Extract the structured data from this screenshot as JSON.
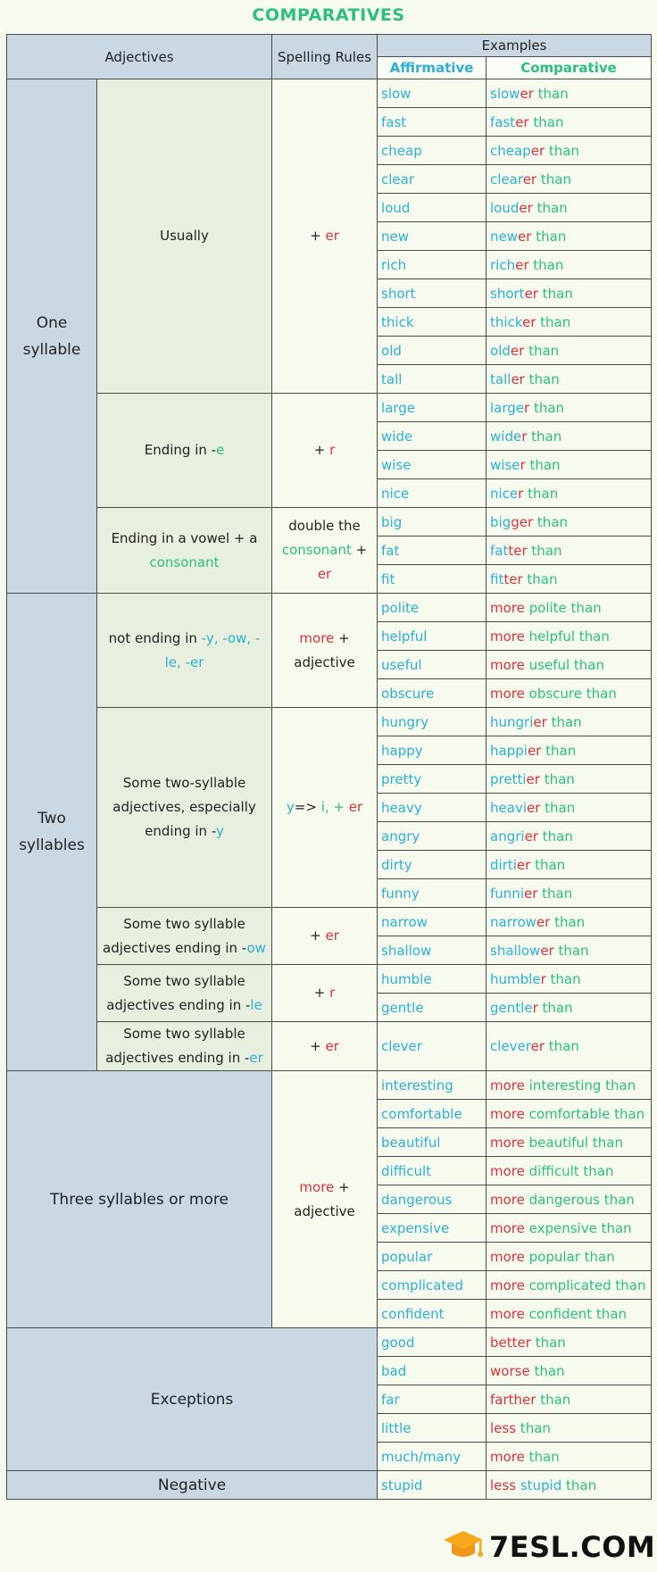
{
  "title": "COMPARATIVES",
  "headers": {
    "adjectives": "Adjectives",
    "spelling_rules": "Spelling Rules",
    "examples": "Examples",
    "affirmative": "Affirmative",
    "comparative": "Comparative"
  },
  "sections": {
    "one_syllable": [
      "One",
      "syllable"
    ],
    "two_syllables": [
      "Two",
      "syllables"
    ],
    "three_syllables": "Three syllables or more",
    "exceptions": "Exceptions",
    "negative": "Negative"
  },
  "categories": {
    "usually": "Usually",
    "ending_e": [
      "Ending in -",
      "e"
    ],
    "ending_vowel": [
      "Ending in a vowel + a",
      "consonant"
    ],
    "not_ending": [
      "not ending in ",
      "-y, -ow, -le, -er"
    ],
    "some_y": [
      "Some two-syllable adjectives, especially ending in -",
      "y"
    ],
    "some_ow": [
      "Some two syllable adjectives ending in -",
      "ow"
    ],
    "some_le": [
      "Some two syllable adjectives ending in -",
      "le"
    ],
    "some_er": [
      "Some two syllable adjectives ending in -",
      "er"
    ]
  },
  "rules": {
    "plus_er": [
      "+ ",
      "er"
    ],
    "plus_r": [
      "+ ",
      "r"
    ],
    "double": [
      "double the",
      "consonant",
      " + ",
      "er"
    ],
    "more_adj": [
      "more",
      " +",
      "adjective"
    ],
    "y_i": [
      "y",
      "=> ",
      "i",
      ", + ",
      "er"
    ]
  },
  "rows": [
    {
      "aff": "slow",
      "c": [
        "slow",
        "er",
        " than"
      ]
    },
    {
      "aff": "fast",
      "c": [
        "fast",
        "er",
        " than"
      ]
    },
    {
      "aff": "cheap",
      "c": [
        "cheap",
        "er",
        " than"
      ]
    },
    {
      "aff": "clear",
      "c": [
        "clear",
        "er",
        " than"
      ]
    },
    {
      "aff": "loud",
      "c": [
        "loud",
        "er",
        " than"
      ]
    },
    {
      "aff": "new",
      "c": [
        "new",
        "er",
        " than"
      ]
    },
    {
      "aff": "rich",
      "c": [
        "rich",
        "er",
        " than"
      ]
    },
    {
      "aff": "short",
      "c": [
        "short",
        "er",
        " than"
      ]
    },
    {
      "aff": "thick",
      "c": [
        "thick",
        "er",
        " than"
      ]
    },
    {
      "aff": "old",
      "c": [
        "old",
        "er",
        " than"
      ]
    },
    {
      "aff": "tall",
      "c": [
        "tall",
        "er",
        " than"
      ]
    },
    {
      "aff": "large",
      "c": [
        "large",
        "r",
        " than"
      ]
    },
    {
      "aff": "wide",
      "c": [
        "wide",
        "r",
        " than"
      ]
    },
    {
      "aff": "wise",
      "c": [
        "wise",
        "r",
        " than"
      ]
    },
    {
      "aff": "nice",
      "c": [
        "nice",
        "r",
        " than"
      ]
    },
    {
      "aff": "big",
      "c": [
        "big",
        "ger",
        " than"
      ]
    },
    {
      "aff": "fat",
      "c": [
        "fat",
        "ter",
        " than"
      ]
    },
    {
      "aff": "fit",
      "c": [
        "fit",
        "ter",
        " than"
      ]
    },
    {
      "aff": "polite",
      "m": [
        "more",
        " polite than"
      ]
    },
    {
      "aff": "helpful",
      "m": [
        "more",
        " helpful than"
      ]
    },
    {
      "aff": "useful",
      "m": [
        "more",
        " useful than"
      ]
    },
    {
      "aff": "obscure",
      "m": [
        "more",
        " obscure than"
      ]
    },
    {
      "aff": "hungry",
      "c": [
        "hungri",
        "er",
        " than"
      ]
    },
    {
      "aff": "happy",
      "c": [
        "happi",
        "er",
        " than"
      ]
    },
    {
      "aff": "pretty",
      "c": [
        "pretti",
        "er",
        " than"
      ]
    },
    {
      "aff": "heavy",
      "c": [
        "heavi",
        "er",
        " than"
      ]
    },
    {
      "aff": "angry",
      "c": [
        "angri",
        "er",
        " than"
      ]
    },
    {
      "aff": "dirty",
      "c": [
        "dirti",
        "er",
        " than"
      ]
    },
    {
      "aff": "funny",
      "c": [
        "funni",
        "er",
        " than"
      ]
    },
    {
      "aff": "narrow",
      "c": [
        "narrow",
        "er",
        " than"
      ]
    },
    {
      "aff": "shallow",
      "c": [
        "shallow",
        "er",
        " than"
      ]
    },
    {
      "aff": "humble",
      "c": [
        "humble",
        "r",
        " than"
      ]
    },
    {
      "aff": "gentle",
      "c": [
        "gentle",
        "r",
        " than"
      ]
    },
    {
      "aff": "clever",
      "c": [
        "clever",
        "er",
        " than"
      ]
    },
    {
      "aff": "interesting",
      "m": [
        "more",
        " interesting than"
      ]
    },
    {
      "aff": "comfortable",
      "m": [
        "more",
        " comfortable than"
      ]
    },
    {
      "aff": "beautiful",
      "m": [
        "more",
        " beautiful than"
      ]
    },
    {
      "aff": "difficult",
      "m": [
        "more",
        " difficult than"
      ]
    },
    {
      "aff": "dangerous",
      "m": [
        "more",
        " dangerous than"
      ]
    },
    {
      "aff": "expensive",
      "m": [
        "more",
        " expensive than"
      ]
    },
    {
      "aff": "popular",
      "m": [
        "more",
        " popular than"
      ]
    },
    {
      "aff": "complicated",
      "m": [
        "more",
        " complicated than"
      ]
    },
    {
      "aff": "confident",
      "m": [
        "more",
        " confident than"
      ]
    },
    {
      "aff": "good",
      "m": [
        "better",
        " than"
      ]
    },
    {
      "aff": "bad",
      "m": [
        "worse",
        " than"
      ]
    },
    {
      "aff": "far",
      "m": [
        "farther",
        " than"
      ]
    },
    {
      "aff": "little",
      "m": [
        "less",
        " than"
      ]
    },
    {
      "aff": "much/many",
      "m": [
        "more",
        " than"
      ]
    },
    {
      "aff": "stupid",
      "n": [
        "less",
        " stupid",
        " than"
      ]
    }
  ],
  "logo": {
    "text": "7ESL.COM",
    "icon": "graduation-cap-icon"
  }
}
